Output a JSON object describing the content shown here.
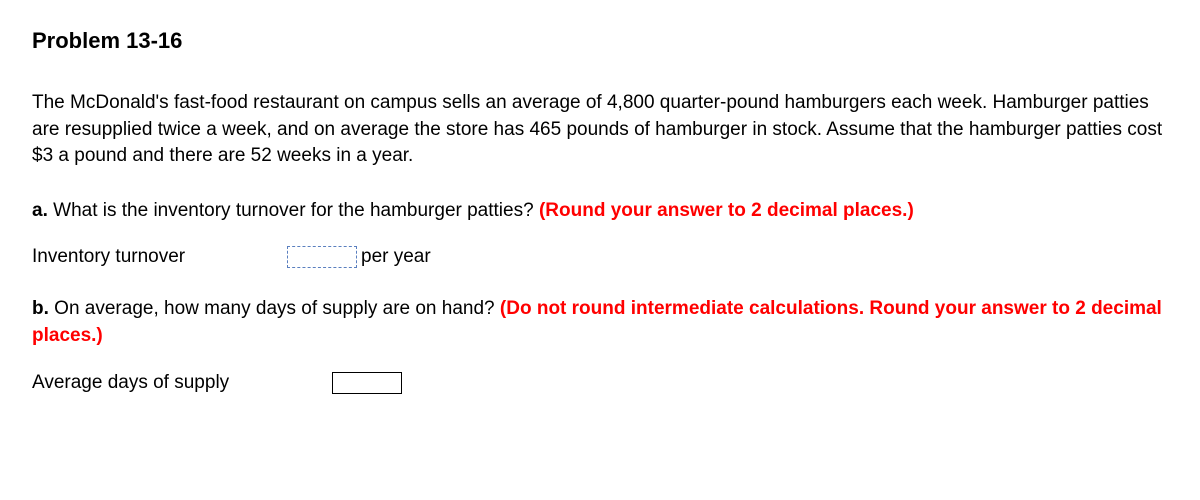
{
  "title": "Problem 13-16",
  "intro": "The McDonald's fast-food restaurant on campus sells an average of 4,800 quarter-pound hamburgers each week. Hamburger patties are resupplied twice a week, and on average the store has 465 pounds of hamburger in stock. Assume that the hamburger patties cost $3 a pound and there are 52 weeks in a year.",
  "partA": {
    "letter": "a.",
    "question": "What is the inventory turnover for the hamburger patties?",
    "hint": "(Round your answer to 2 decimal places.)",
    "answerLabel": "Inventory turnover",
    "answerValue": "",
    "unit": "per year"
  },
  "partB": {
    "letter": "b.",
    "question": "On average, how many days of supply are on hand?",
    "hint": "(Do not round intermediate calculations. Round your answer to 2 decimal places.)",
    "answerLabel": "Average days of supply",
    "answerValue": ""
  },
  "colors": {
    "hint": "#ff0000",
    "text": "#000000",
    "inputBorderDashed": "#5a7fbf",
    "background": "#ffffff"
  }
}
